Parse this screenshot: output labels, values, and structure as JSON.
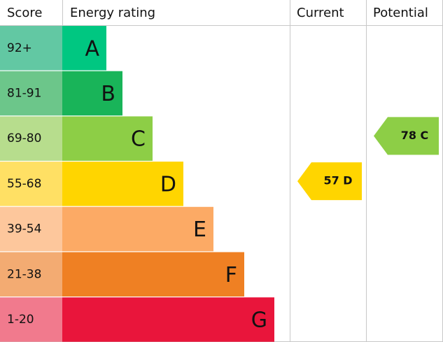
{
  "header": {
    "score": "Score",
    "rating": "Energy rating",
    "current": "Current",
    "potential": "Potential"
  },
  "bands": [
    {
      "score": "92+",
      "letter": "A",
      "color": "#00c781",
      "score_color": "#62c8a3"
    },
    {
      "score": "81-91",
      "letter": "B",
      "color": "#19b459",
      "score_color": "#6cc68a"
    },
    {
      "score": "69-80",
      "letter": "C",
      "color": "#8dce46",
      "score_color": "#b7dd8d"
    },
    {
      "score": "55-68",
      "letter": "D",
      "color": "#ffd500",
      "score_color": "#ffe064"
    },
    {
      "score": "39-54",
      "letter": "E",
      "color": "#fcaa65",
      "score_color": "#fdc79c"
    },
    {
      "score": "21-38",
      "letter": "F",
      "color": "#ef8023",
      "score_color": "#f3ab72"
    },
    {
      "score": "1-20",
      "letter": "G",
      "color": "#e9153b",
      "score_color": "#f17a8d"
    }
  ],
  "current": "57 D",
  "potential": "78 C"
}
